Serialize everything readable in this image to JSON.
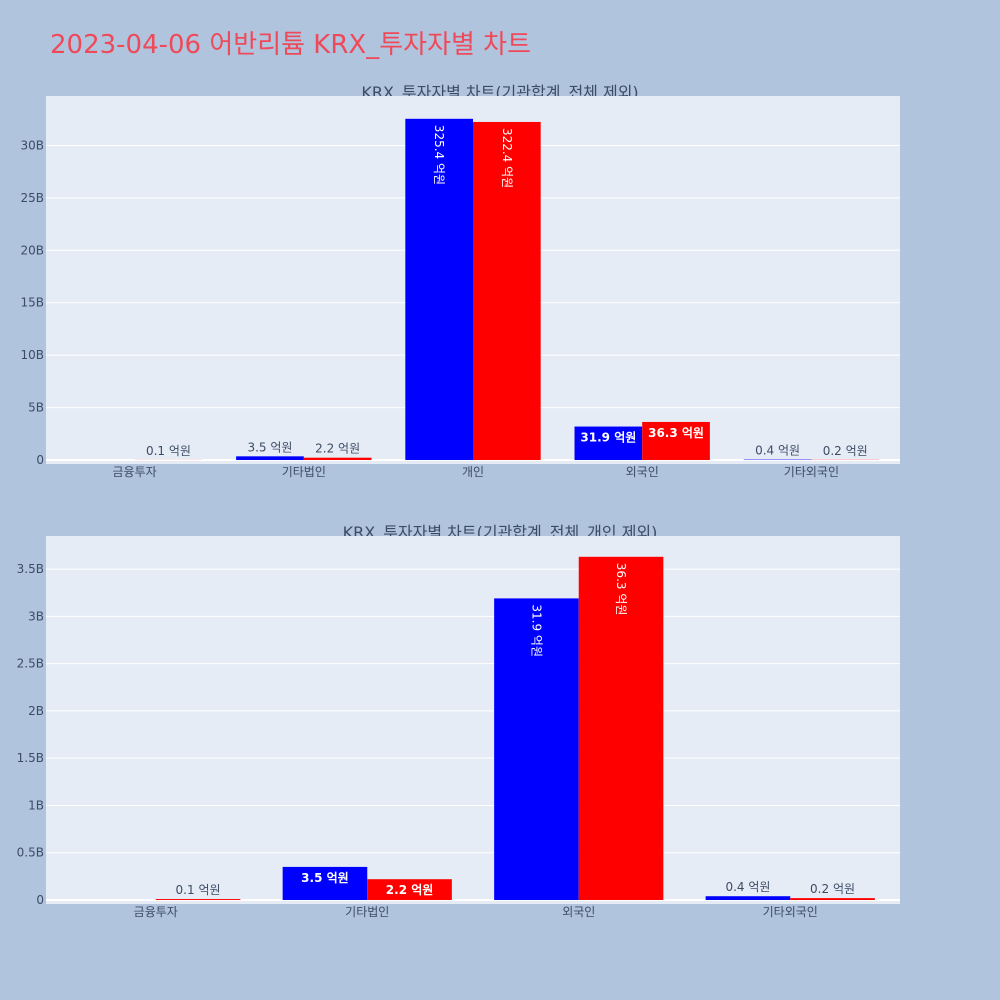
{
  "title": "2023-04-06 어반리튬 KRX_투자자별 차트",
  "units_label": "억원",
  "colors": {
    "series_a": "#0000ff",
    "series_b": "#ff0000",
    "plot_bg": "#e5ecf6",
    "page_bg": "#b0c4de"
  },
  "chart_data": [
    {
      "type": "bar",
      "title": "KRX_투자자별 차트(기관합계_전체 제외)",
      "categories": [
        "금융투자",
        "기타법인",
        "개인",
        "외국인",
        "기타외국인"
      ],
      "series": [
        {
          "values": [
            0,
            0.35,
            32.54,
            3.19,
            0.04
          ],
          "labels": [
            "",
            "3.5 억원",
            "325.4 억원",
            "31.9 억원",
            "0.4 억원"
          ]
        },
        {
          "values": [
            0.01,
            0.22,
            32.24,
            3.63,
            0.02
          ],
          "labels": [
            "0.1 억원",
            "2.2 억원",
            "322.4 억원",
            "36.3 억원",
            "0.2 억원"
          ]
        }
      ],
      "value_unit": "B",
      "ylim": [
        0,
        34
      ],
      "yticks": [
        0,
        5,
        10,
        15,
        20,
        25,
        30
      ],
      "ytick_labels": [
        "0",
        "5B",
        "10B",
        "15B",
        "20B",
        "25B",
        "30B"
      ],
      "grid": true,
      "legend": "none"
    },
    {
      "type": "bar",
      "title": "KRX_투자자별 차트(기관합계_전체_개인 제외)",
      "categories": [
        "금융투자",
        "기타법인",
        "외국인",
        "기타외국인"
      ],
      "series": [
        {
          "values": [
            0,
            0.35,
            3.19,
            0.04
          ],
          "labels": [
            "",
            "3.5 억원",
            "31.9 억원",
            "0.4 억원"
          ]
        },
        {
          "values": [
            0.01,
            0.22,
            3.63,
            0.02
          ],
          "labels": [
            "0.1 억원",
            "2.2 억원",
            "36.3 억원",
            "0.2 억원"
          ]
        }
      ],
      "value_unit": "B",
      "ylim": [
        0,
        3.85
      ],
      "yticks": [
        0,
        0.5,
        1,
        1.5,
        2,
        2.5,
        3,
        3.5
      ],
      "ytick_labels": [
        "0",
        "0.5B",
        "1B",
        "1.5B",
        "2B",
        "2.5B",
        "3B",
        "3.5B"
      ],
      "grid": true,
      "legend": "none"
    }
  ]
}
